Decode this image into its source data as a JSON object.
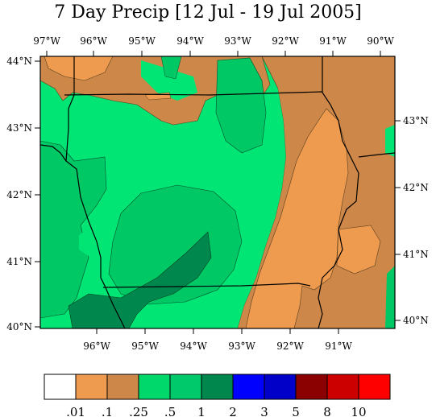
{
  "title": "7 Day Precip [12 Jul - 19 Jul 2005]",
  "axes": {
    "top_ticks": [
      "97°W",
      "96°W",
      "95°W",
      "94°W",
      "93°W",
      "92°W",
      "91°W",
      "90°W"
    ],
    "bottom_ticks": [
      "96°W",
      "95°W",
      "94°W",
      "93°W",
      "92°W",
      "91°W"
    ],
    "left_ticks": [
      "44°N",
      "43°N",
      "42°N",
      "41°N",
      "40°N"
    ],
    "right_ticks": [
      "43°N",
      "42°N",
      "41°N",
      "40°N"
    ]
  },
  "legend": {
    "colors": [
      "#ffffff",
      "#ee9b50",
      "#cd8748",
      "#00d86b",
      "#00c96b",
      "#00874e",
      "#0000ff",
      "#0000c8",
      "#8b0000",
      "#cd0000",
      "#ff0000"
    ],
    "labels": [
      ".01",
      ".1",
      ".25",
      ".5",
      "1",
      "2",
      "3",
      "5",
      "8",
      "10"
    ]
  },
  "fill_colors": {
    "orange": "#ee9b50",
    "tan": "#cd8748",
    "green": "#00e573",
    "medium_green": "#00c864",
    "dark_green": "#00874e"
  }
}
